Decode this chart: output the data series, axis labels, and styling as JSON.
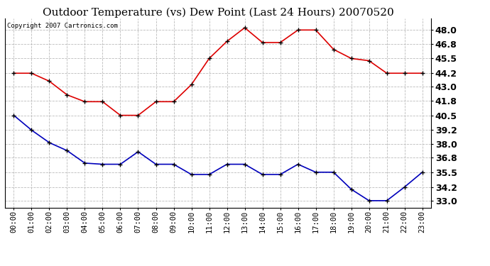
{
  "title": "Outdoor Temperature (vs) Dew Point (Last 24 Hours) 20070520",
  "copyright_text": "Copyright 2007 Cartronics.com",
  "x_labels": [
    "00:00",
    "01:00",
    "02:00",
    "03:00",
    "04:00",
    "05:00",
    "06:00",
    "07:00",
    "08:00",
    "09:00",
    "10:00",
    "11:00",
    "12:00",
    "13:00",
    "14:00",
    "15:00",
    "16:00",
    "17:00",
    "18:00",
    "19:00",
    "20:00",
    "21:00",
    "22:00",
    "23:00"
  ],
  "temp_red": [
    44.2,
    44.2,
    43.5,
    42.3,
    41.7,
    41.7,
    40.5,
    40.5,
    41.7,
    41.7,
    43.2,
    45.5,
    47.0,
    48.2,
    46.9,
    46.9,
    48.0,
    48.0,
    46.3,
    45.5,
    45.3,
    44.2,
    44.2,
    44.2
  ],
  "dew_blue": [
    40.5,
    39.2,
    38.1,
    37.4,
    36.3,
    36.2,
    36.2,
    37.3,
    36.2,
    36.2,
    35.3,
    35.3,
    36.2,
    36.2,
    35.3,
    35.3,
    36.2,
    35.5,
    35.5,
    34.0,
    33.0,
    33.0,
    34.2,
    35.5
  ],
  "ylim_min": 32.4,
  "ylim_max": 49.0,
  "yticks": [
    33.0,
    34.2,
    35.5,
    36.8,
    38.0,
    39.2,
    40.5,
    41.8,
    43.0,
    44.2,
    45.5,
    46.8,
    48.0
  ],
  "red_color": "#dd0000",
  "blue_color": "#0000bb",
  "bg_color": "#ffffff",
  "grid_color": "#bbbbbb",
  "title_fontsize": 11,
  "copyright_fontsize": 6.5,
  "axis_fontsize": 7.5,
  "ytick_fontsize": 9
}
